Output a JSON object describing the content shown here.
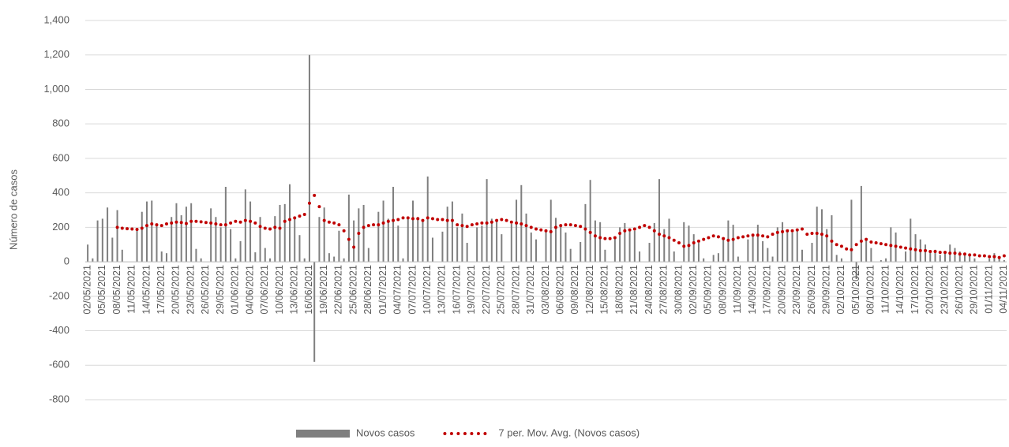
{
  "chart_data": {
    "type": "bar_line",
    "y_label": "Número de casos",
    "ylim": [
      -800,
      1400
    ],
    "yticks": [
      -800,
      -600,
      -400,
      -200,
      0,
      200,
      400,
      600,
      800,
      1000,
      1200,
      1400
    ],
    "ytick_labels": [
      "-800",
      "-600",
      "-400",
      "-200",
      "0",
      "200",
      "400",
      "600",
      "800",
      "1,000",
      "1,200",
      "1,400"
    ],
    "grid": true,
    "legend": "bottom",
    "categories": [
      "02/05/2021",
      null,
      null,
      "05/05/2021",
      null,
      null,
      "08/05/2021",
      null,
      null,
      "11/05/2021",
      null,
      null,
      "14/05/2021",
      null,
      null,
      "17/05/2021",
      null,
      null,
      "20/05/2021",
      null,
      null,
      "23/05/2021",
      null,
      null,
      "26/05/2021",
      null,
      null,
      "29/05/2021",
      null,
      null,
      "01/06/2021",
      null,
      null,
      "04/06/2021",
      null,
      null,
      "07/06/2021",
      null,
      null,
      "10/06/2021",
      null,
      null,
      "13/06/2021",
      null,
      null,
      "16/06/2021",
      null,
      null,
      "19/06/2021",
      null,
      null,
      "22/06/2021",
      null,
      null,
      "25/06/2021",
      null,
      null,
      "28/06/2021",
      null,
      null,
      "01/07/2021",
      null,
      null,
      "04/07/2021",
      null,
      null,
      "07/07/2021",
      null,
      null,
      "10/07/2021",
      null,
      null,
      "13/07/2021",
      null,
      null,
      "16/07/2021",
      null,
      null,
      "19/07/2021",
      null,
      null,
      "22/07/2021",
      null,
      null,
      "25/07/2021",
      null,
      null,
      "28/07/2021",
      null,
      null,
      "31/07/2021",
      null,
      null,
      "03/08/2021",
      null,
      null,
      "06/08/2021",
      null,
      null,
      "09/08/2021",
      null,
      null,
      "12/08/2021",
      null,
      null,
      "15/08/2021",
      null,
      null,
      "18/08/2021",
      null,
      null,
      "21/08/2021",
      null,
      null,
      "24/08/2021",
      null,
      null,
      "27/08/2021",
      null,
      null,
      "30/08/2021",
      null,
      null,
      "02/09/2021",
      null,
      null,
      "05/09/2021",
      null,
      null,
      "08/09/2021",
      null,
      null,
      "11/09/2021",
      null,
      null,
      "14/09/2021",
      null,
      null,
      "17/09/2021",
      null,
      null,
      "20/09/2021",
      null,
      null,
      "23/09/2021",
      null,
      null,
      "26/09/2021",
      null,
      null,
      "29/09/2021",
      null,
      null,
      "02/10/2021",
      null,
      null,
      "05/10/2021",
      null,
      null,
      "08/10/2021",
      null,
      null,
      "11/10/2021",
      null,
      null,
      "14/10/2021",
      null,
      null,
      "17/10/2021",
      null,
      null,
      "20/10/2021",
      null,
      null,
      "23/10/2021",
      null,
      null,
      "26/10/2021",
      null,
      null,
      "29/10/2021",
      null,
      null,
      "01/11/2021",
      null,
      null,
      "04/11/2021"
    ],
    "series": [
      {
        "name": "Novos casos",
        "kind": "bar",
        "color": "#7f7f7f",
        "values": [
          100,
          20,
          240,
          250,
          315,
          140,
          300,
          70,
          0,
          0,
          190,
          290,
          350,
          355,
          210,
          60,
          50,
          260,
          340,
          270,
          320,
          340,
          75,
          20,
          0,
          310,
          260,
          200,
          435,
          190,
          20,
          120,
          420,
          350,
          55,
          260,
          80,
          20,
          265,
          330,
          335,
          450,
          250,
          155,
          20,
          1200,
          -580,
          260,
          315,
          50,
          30,
          180,
          20,
          390,
          240,
          310,
          330,
          80,
          0,
          290,
          355,
          250,
          435,
          210,
          20,
          250,
          355,
          260,
          240,
          495,
          140,
          0,
          175,
          320,
          350,
          200,
          280,
          110,
          0,
          200,
          210,
          480,
          250,
          240,
          160,
          0,
          220,
          360,
          445,
          280,
          170,
          130,
          0,
          175,
          360,
          255,
          210,
          170,
          75,
          0,
          115,
          335,
          475,
          240,
          230,
          70,
          0,
          140,
          200,
          225,
          190,
          180,
          60,
          0,
          110,
          225,
          480,
          190,
          250,
          60,
          0,
          230,
          210,
          160,
          110,
          20,
          0,
          40,
          50,
          130,
          240,
          215,
          30,
          0,
          130,
          160,
          215,
          120,
          80,
          30,
          200,
          230,
          185,
          170,
          185,
          70,
          0,
          110,
          320,
          305,
          190,
          270,
          40,
          20,
          0,
          360,
          -100,
          440,
          130,
          80,
          0,
          10,
          20,
          200,
          170,
          0,
          60,
          250,
          160,
          130,
          100,
          60,
          70,
          40,
          60,
          100,
          80,
          60,
          50,
          40,
          20,
          0,
          0,
          20,
          50,
          20,
          10
        ]
      },
      {
        "name": "7 per. Mov. Avg. (Novos casos)",
        "kind": "dots",
        "color": "#c00000",
        "values": [
          null,
          null,
          null,
          null,
          null,
          null,
          200,
          195,
          192,
          190,
          188,
          195,
          210,
          220,
          215,
          210,
          220,
          225,
          230,
          228,
          222,
          235,
          235,
          232,
          228,
          225,
          220,
          215,
          215,
          225,
          235,
          230,
          240,
          235,
          225,
          205,
          195,
          190,
          200,
          195,
          235,
          245,
          255,
          265,
          275,
          340,
          385,
          320,
          240,
          230,
          225,
          215,
          180,
          130,
          85,
          165,
          200,
          210,
          215,
          215,
          225,
          235,
          240,
          245,
          255,
          255,
          250,
          250,
          240,
          255,
          250,
          245,
          245,
          240,
          240,
          215,
          210,
          205,
          215,
          220,
          225,
          225,
          230,
          240,
          245,
          240,
          230,
          225,
          220,
          210,
          200,
          190,
          185,
          180,
          175,
          200,
          210,
          215,
          215,
          210,
          205,
          190,
          170,
          150,
          140,
          135,
          135,
          140,
          165,
          180,
          185,
          190,
          200,
          210,
          200,
          180,
          160,
          150,
          140,
          125,
          110,
          90,
          95,
          110,
          120,
          130,
          140,
          150,
          145,
          135,
          125,
          130,
          140,
          145,
          150,
          155,
          155,
          150,
          145,
          160,
          170,
          175,
          180,
          180,
          185,
          190,
          160,
          165,
          165,
          160,
          150,
          120,
          100,
          90,
          75,
          70,
          100,
          120,
          130,
          115,
          110,
          105,
          100,
          95,
          90,
          85,
          80,
          75,
          70,
          65,
          65,
          60,
          60,
          55,
          55,
          50,
          50,
          45,
          45,
          40,
          40,
          35,
          35,
          30,
          30,
          25,
          35
        ]
      }
    ]
  }
}
